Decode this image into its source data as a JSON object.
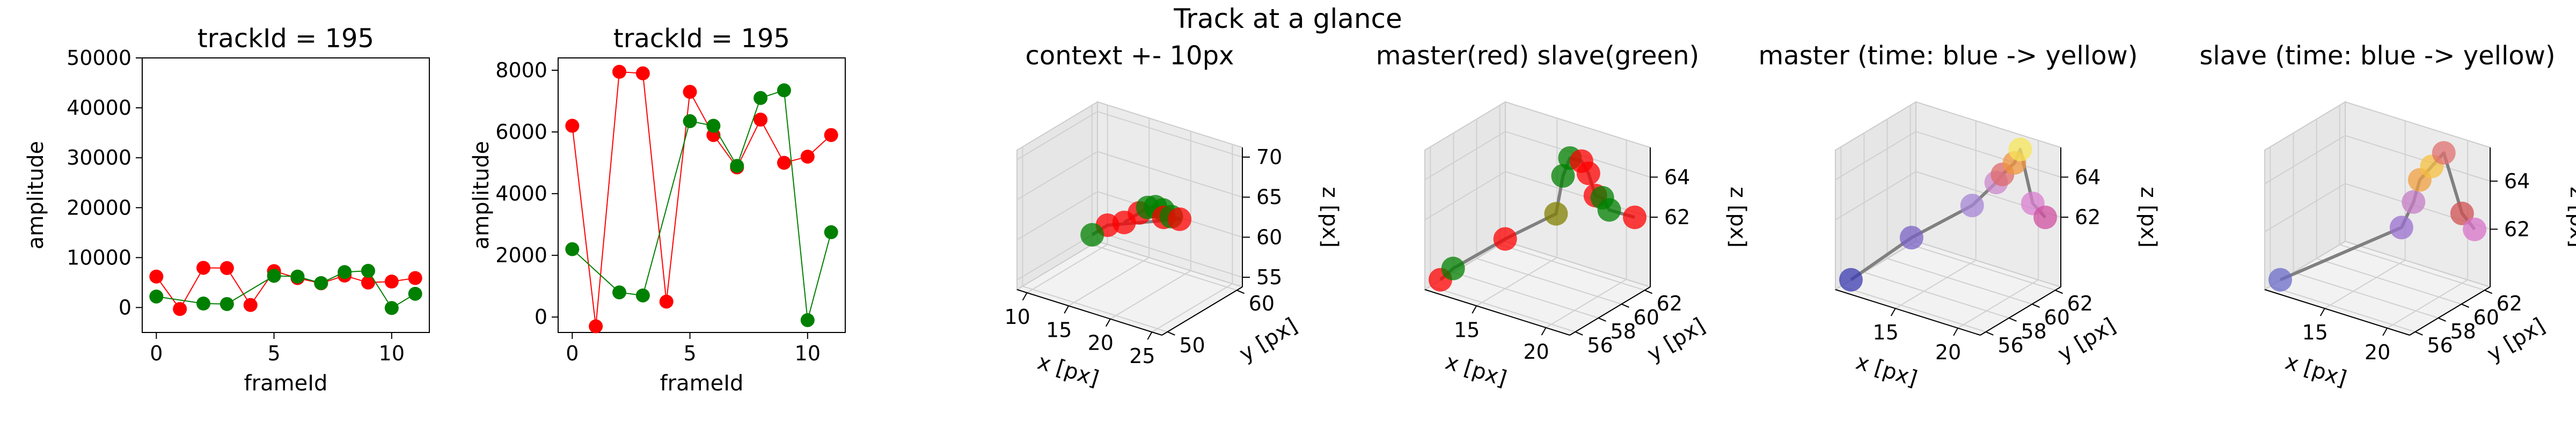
{
  "suptitle": "Track at a glance",
  "colors": {
    "master": "#ff0000",
    "slave": "#008000",
    "pane": "#f2f2f2",
    "pane_edge": "#cccccc",
    "line": "#808080"
  },
  "chart_data": [
    {
      "type": "line",
      "title": "trackId = 195",
      "xlabel": "frameId",
      "ylabel": "amplitude",
      "xlim": [
        -0.6,
        11.6
      ],
      "ylim": [
        -5000,
        50000
      ],
      "xticks": [
        0,
        5,
        10
      ],
      "yticks": [
        0,
        10000,
        20000,
        30000,
        40000,
        50000
      ],
      "x": [
        0,
        1,
        2,
        3,
        4,
        5,
        6,
        7,
        8,
        9,
        10,
        11
      ],
      "series": [
        {
          "values": [
            6200,
            -300,
            7950,
            7900,
            500,
            7300,
            5900,
            4850,
            6400,
            5000,
            5200,
            5900
          ],
          "color": "#ff0000"
        },
        {
          "values": [
            2200,
            null,
            800,
            700,
            null,
            6350,
            6200,
            4900,
            7100,
            7350,
            -100,
            2750
          ],
          "color": "#008000"
        }
      ]
    },
    {
      "type": "line",
      "title": "trackId = 195",
      "xlabel": "frameId",
      "ylabel": "amplitude",
      "xlim": [
        -0.6,
        11.6
      ],
      "ylim": [
        -500,
        8400
      ],
      "xticks": [
        0,
        5,
        10
      ],
      "yticks": [
        0,
        2000,
        4000,
        6000,
        8000
      ],
      "x": [
        0,
        1,
        2,
        3,
        4,
        5,
        6,
        7,
        8,
        9,
        10,
        11
      ],
      "series": [
        {
          "values": [
            6200,
            -300,
            7950,
            7900,
            500,
            7300,
            5900,
            4850,
            6400,
            5000,
            5200,
            5900
          ],
          "color": "#ff0000"
        },
        {
          "values": [
            2200,
            null,
            800,
            700,
            null,
            6350,
            6200,
            4900,
            7100,
            7350,
            -100,
            2750
          ],
          "color": "#008000"
        }
      ]
    },
    {
      "type": "scatter",
      "projection": "3d",
      "title": "context +- 10px",
      "xlabel": "x [px]",
      "ylabel": "y [px]",
      "zlabel": "z [px]",
      "xticks": [
        10,
        15,
        20,
        25
      ],
      "yticks": [
        50,
        60
      ],
      "zticks": [
        55,
        60,
        65,
        70
      ],
      "points": [
        {
          "x": 16,
          "y": 56,
          "z": 61,
          "color": "#ff0000"
        },
        {
          "x": 17,
          "y": 57,
          "z": 62,
          "color": "#ff0000"
        },
        {
          "x": 18,
          "y": 57,
          "z": 63,
          "color": "#008000"
        },
        {
          "x": 18.5,
          "y": 57.5,
          "z": 63,
          "color": "#008000"
        },
        {
          "x": 19,
          "y": 58,
          "z": 62.5,
          "color": "#008000"
        },
        {
          "x": 19.5,
          "y": 57.5,
          "z": 62,
          "color": "#ff0000"
        },
        {
          "x": 20,
          "y": 58,
          "z": 62,
          "color": "#008000"
        },
        {
          "x": 21,
          "y": 58,
          "z": 62,
          "color": "#ff0000"
        },
        {
          "x": 14,
          "y": 56,
          "z": 60,
          "color": "#ff0000"
        },
        {
          "x": 13,
          "y": 55,
          "z": 59,
          "color": "#008000"
        }
      ]
    },
    {
      "type": "scatter",
      "projection": "3d",
      "title": "master(red) slave(green)",
      "xlabel": "x [px]",
      "ylabel": "y [px]",
      "zlabel": "z [px]",
      "xticks": [
        15,
        20
      ],
      "yticks": [
        56,
        58,
        60,
        62
      ],
      "zticks": [
        62,
        64
      ],
      "points": [
        {
          "x": 12,
          "y": 56,
          "z": 59,
          "color": "#ff0000"
        },
        {
          "x": 12.5,
          "y": 56.5,
          "z": 59.5,
          "color": "#008000"
        },
        {
          "x": 15,
          "y": 58,
          "z": 61,
          "color": "#ff0000"
        },
        {
          "x": 17,
          "y": 60,
          "z": 62,
          "color": "#808000"
        },
        {
          "x": 17.5,
          "y": 60,
          "z": 64,
          "color": "#008000"
        },
        {
          "x": 18,
          "y": 60,
          "z": 65,
          "color": "#008000"
        },
        {
          "x": 18,
          "y": 61,
          "z": 64.5,
          "color": "#ff0000"
        },
        {
          "x": 18.5,
          "y": 61,
          "z": 64,
          "color": "#ff0000"
        },
        {
          "x": 19,
          "y": 61,
          "z": 63,
          "color": "#ff0000"
        },
        {
          "x": 19.5,
          "y": 61,
          "z": 63,
          "color": "#008000"
        },
        {
          "x": 20,
          "y": 61,
          "z": 62.5,
          "color": "#008000"
        },
        {
          "x": 21,
          "y": 62,
          "z": 62,
          "color": "#ff0000"
        }
      ]
    },
    {
      "type": "scatter",
      "projection": "3d",
      "title": "master (time: blue -> yellow)",
      "xlabel": "x [px]",
      "ylabel": "y [px]",
      "zlabel": "z [px]",
      "xticks": [
        15,
        20
      ],
      "yticks": [
        56,
        58,
        60,
        62
      ],
      "zticks": [
        62,
        64
      ],
      "points": [
        {
          "x": 11,
          "y": 56,
          "z": 59,
          "color": "#3b3bb0"
        },
        {
          "x": 14,
          "y": 58,
          "z": 61,
          "color": "#7b62c4"
        },
        {
          "x": 17,
          "y": 60,
          "z": 62.5,
          "color": "#a585d6"
        },
        {
          "x": 18,
          "y": 61,
          "z": 63.5,
          "color": "#cc88cc"
        },
        {
          "x": 18.5,
          "y": 61,
          "z": 64,
          "color": "#e06a6a"
        },
        {
          "x": 19,
          "y": 61.5,
          "z": 64.5,
          "color": "#f0963c"
        },
        {
          "x": 19,
          "y": 62,
          "z": 65,
          "color": "#f7e65a"
        },
        {
          "x": 20,
          "y": 62,
          "z": 62.5,
          "color": "#d97fd0"
        },
        {
          "x": 21,
          "y": 62,
          "z": 62,
          "color": "#d050a0"
        }
      ]
    },
    {
      "type": "scatter",
      "projection": "3d",
      "title": "slave (time: blue -> yellow)",
      "xlabel": "x [px]",
      "ylabel": "y [px]",
      "zlabel": "z [px]",
      "xticks": [
        15,
        20
      ],
      "yticks": [
        56,
        58,
        60,
        62
      ],
      "zticks": [
        62,
        64
      ],
      "points": [
        {
          "x": 11,
          "y": 56,
          "z": 60,
          "color": "#6b6bc8"
        },
        {
          "x": 17,
          "y": 60,
          "z": 62,
          "color": "#9a70d0"
        },
        {
          "x": 17.5,
          "y": 60.5,
          "z": 63,
          "color": "#c57ec6"
        },
        {
          "x": 18,
          "y": 60.5,
          "z": 64,
          "color": "#f0a040"
        },
        {
          "x": 18.5,
          "y": 61,
          "z": 64.5,
          "color": "#f5c040"
        },
        {
          "x": 19,
          "y": 61.5,
          "z": 65,
          "color": "#e07070"
        },
        {
          "x": 20,
          "y": 62,
          "z": 62.5,
          "color": "#d05050"
        },
        {
          "x": 21,
          "y": 62,
          "z": 62,
          "color": "#d873c8"
        }
      ]
    }
  ]
}
